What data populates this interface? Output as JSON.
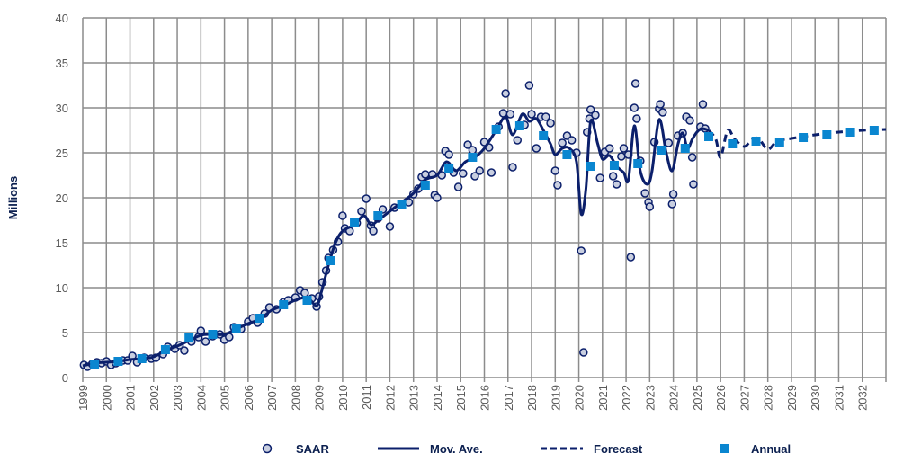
{
  "chart_data": {
    "type": "line",
    "title": "",
    "xlabel": "",
    "ylabel": "Millions",
    "xlim": [
      1999,
      2033
    ],
    "ylim": [
      0,
      40
    ],
    "yticks": [
      "0",
      "5",
      "10",
      "15",
      "20",
      "25",
      "30",
      "35",
      "40"
    ],
    "xticks": [
      "1999",
      "2000",
      "2001",
      "2002",
      "2003",
      "2004",
      "2005",
      "2006",
      "2007",
      "2008",
      "2009",
      "2010",
      "2011",
      "2012",
      "2013",
      "2014",
      "2015",
      "2016",
      "2017",
      "2018",
      "2019",
      "2020",
      "2021",
      "2022",
      "2023",
      "2024",
      "2025",
      "2026",
      "2027",
      "2028",
      "2029",
      "2030",
      "2031",
      "2032"
    ],
    "grid": true,
    "legend_position": "bottom",
    "colors": {
      "navy": "#0b1f6b",
      "annual": "#0a86d0",
      "saar_fill": "#c9cfe0",
      "grid": "#8c8c8c"
    },
    "series": [
      {
        "name": "SAAR",
        "kind": "scatter",
        "points": [
          [
            1999.05,
            1.4
          ],
          [
            1999.2,
            1.2
          ],
          [
            1999.4,
            1.5
          ],
          [
            1999.6,
            1.7
          ],
          [
            1999.8,
            1.6
          ],
          [
            2000.0,
            1.8
          ],
          [
            2000.2,
            1.4
          ],
          [
            2000.4,
            1.6
          ],
          [
            2000.7,
            1.9
          ],
          [
            2000.9,
            1.9
          ],
          [
            2001.1,
            2.4
          ],
          [
            2001.3,
            1.7
          ],
          [
            2001.6,
            2.2
          ],
          [
            2001.9,
            2.1
          ],
          [
            2002.1,
            2.2
          ],
          [
            2002.4,
            2.6
          ],
          [
            2002.6,
            3.4
          ],
          [
            2002.9,
            3.2
          ],
          [
            2003.1,
            3.6
          ],
          [
            2003.3,
            3.0
          ],
          [
            2003.6,
            4.0
          ],
          [
            2003.9,
            4.5
          ],
          [
            2004.0,
            5.2
          ],
          [
            2004.2,
            4.0
          ],
          [
            2004.5,
            4.6
          ],
          [
            2004.8,
            4.8
          ],
          [
            2005.0,
            4.2
          ],
          [
            2005.2,
            4.5
          ],
          [
            2005.4,
            5.6
          ],
          [
            2005.7,
            5.4
          ],
          [
            2006.0,
            6.2
          ],
          [
            2006.2,
            6.6
          ],
          [
            2006.4,
            6.1
          ],
          [
            2006.7,
            7.1
          ],
          [
            2006.9,
            7.8
          ],
          [
            2007.2,
            7.6
          ],
          [
            2007.5,
            8.4
          ],
          [
            2007.7,
            8.6
          ],
          [
            2008.0,
            8.9
          ],
          [
            2008.2,
            9.7
          ],
          [
            2008.4,
            9.4
          ],
          [
            2008.7,
            8.8
          ],
          [
            2008.9,
            7.9
          ],
          [
            2009.0,
            9.0
          ],
          [
            2009.15,
            10.6
          ],
          [
            2009.3,
            11.9
          ],
          [
            2009.4,
            13.3
          ],
          [
            2009.6,
            14.2
          ],
          [
            2009.8,
            15.1
          ],
          [
            2010.0,
            18.0
          ],
          [
            2010.1,
            16.6
          ],
          [
            2010.3,
            16.3
          ],
          [
            2010.6,
            17.2
          ],
          [
            2010.8,
            18.5
          ],
          [
            2011.0,
            19.9
          ],
          [
            2011.2,
            16.9
          ],
          [
            2011.3,
            16.3
          ],
          [
            2011.5,
            17.7
          ],
          [
            2011.7,
            18.7
          ],
          [
            2012.0,
            16.8
          ],
          [
            2012.2,
            18.9
          ],
          [
            2012.5,
            19.2
          ],
          [
            2012.8,
            19.5
          ],
          [
            2013.0,
            20.4
          ],
          [
            2013.2,
            21.0
          ],
          [
            2013.35,
            22.3
          ],
          [
            2013.5,
            22.6
          ],
          [
            2013.8,
            22.6
          ],
          [
            2013.9,
            20.3
          ],
          [
            2014.0,
            20.0
          ],
          [
            2014.2,
            22.5
          ],
          [
            2014.35,
            25.2
          ],
          [
            2014.5,
            24.8
          ],
          [
            2014.7,
            22.8
          ],
          [
            2014.9,
            21.2
          ],
          [
            2015.1,
            22.7
          ],
          [
            2015.3,
            25.9
          ],
          [
            2015.5,
            25.3
          ],
          [
            2015.6,
            22.4
          ],
          [
            2015.8,
            23.0
          ],
          [
            2016.0,
            26.2
          ],
          [
            2016.2,
            25.6
          ],
          [
            2016.3,
            22.8
          ],
          [
            2016.6,
            27.9
          ],
          [
            2016.8,
            29.4
          ],
          [
            2016.9,
            31.6
          ],
          [
            2017.1,
            29.3
          ],
          [
            2017.2,
            23.4
          ],
          [
            2017.4,
            26.4
          ],
          [
            2017.7,
            28.1
          ],
          [
            2017.9,
            32.5
          ],
          [
            2018.0,
            29.3
          ],
          [
            2018.2,
            25.5
          ],
          [
            2018.4,
            29.0
          ],
          [
            2018.6,
            29.0
          ],
          [
            2018.8,
            28.3
          ],
          [
            2019.0,
            23.0
          ],
          [
            2019.1,
            21.4
          ],
          [
            2019.3,
            26.1
          ],
          [
            2019.5,
            26.9
          ],
          [
            2019.7,
            26.4
          ],
          [
            2019.9,
            25.0
          ],
          [
            2020.1,
            14.1
          ],
          [
            2020.2,
            2.8
          ],
          [
            2020.35,
            27.3
          ],
          [
            2020.45,
            28.8
          ],
          [
            2020.5,
            29.8
          ],
          [
            2020.7,
            29.2
          ],
          [
            2020.9,
            22.2
          ],
          [
            2021.1,
            25.1
          ],
          [
            2021.3,
            25.5
          ],
          [
            2021.45,
            22.4
          ],
          [
            2021.6,
            21.5
          ],
          [
            2021.8,
            24.6
          ],
          [
            2021.9,
            25.5
          ],
          [
            2022.1,
            24.8
          ],
          [
            2022.2,
            13.4
          ],
          [
            2022.35,
            30.0
          ],
          [
            2022.4,
            32.7
          ],
          [
            2022.45,
            28.8
          ],
          [
            2022.6,
            24.1
          ],
          [
            2022.8,
            20.5
          ],
          [
            2022.95,
            19.5
          ],
          [
            2023.0,
            19.0
          ],
          [
            2023.2,
            26.2
          ],
          [
            2023.4,
            29.9
          ],
          [
            2023.45,
            30.4
          ],
          [
            2023.55,
            29.5
          ],
          [
            2023.8,
            26.1
          ],
          [
            2023.95,
            19.3
          ],
          [
            2024.0,
            20.4
          ],
          [
            2024.2,
            26.9
          ],
          [
            2024.4,
            27.2
          ],
          [
            2024.55,
            29.0
          ],
          [
            2024.7,
            28.6
          ],
          [
            2024.8,
            24.5
          ],
          [
            2024.85,
            21.5
          ],
          [
            2025.15,
            27.9
          ],
          [
            2025.25,
            30.4
          ],
          [
            2025.35,
            27.7
          ]
        ]
      },
      {
        "name": "Mov. Ave.",
        "kind": "line",
        "points": [
          [
            1999.0,
            1.3
          ],
          [
            1999.5,
            1.6
          ],
          [
            2000.0,
            1.7
          ],
          [
            2000.5,
            1.8
          ],
          [
            2001.0,
            2.0
          ],
          [
            2001.5,
            2.1
          ],
          [
            2002.0,
            2.3
          ],
          [
            2002.5,
            3.0
          ],
          [
            2003.0,
            3.5
          ],
          [
            2003.5,
            4.1
          ],
          [
            2004.0,
            4.7
          ],
          [
            2004.5,
            4.8
          ],
          [
            2005.0,
            4.8
          ],
          [
            2005.5,
            5.4
          ],
          [
            2006.0,
            6.0
          ],
          [
            2006.5,
            6.5
          ],
          [
            2007.0,
            7.5
          ],
          [
            2007.5,
            8.0
          ],
          [
            2008.0,
            8.6
          ],
          [
            2008.5,
            8.9
          ],
          [
            2008.9,
            8.0
          ],
          [
            2009.1,
            9.5
          ],
          [
            2009.4,
            12.5
          ],
          [
            2009.7,
            15.0
          ],
          [
            2010.0,
            16.3
          ],
          [
            2010.5,
            17.0
          ],
          [
            2010.9,
            18.0
          ],
          [
            2011.2,
            17.0
          ],
          [
            2011.5,
            17.5
          ],
          [
            2012.0,
            18.5
          ],
          [
            2012.5,
            19.5
          ],
          [
            2013.0,
            20.5
          ],
          [
            2013.5,
            22.0
          ],
          [
            2014.0,
            22.5
          ],
          [
            2014.4,
            24.0
          ],
          [
            2014.8,
            23.0
          ],
          [
            2015.2,
            24.0
          ],
          [
            2015.6,
            24.5
          ],
          [
            2016.0,
            25.5
          ],
          [
            2016.5,
            27.5
          ],
          [
            2016.9,
            29.0
          ],
          [
            2017.2,
            27.0
          ],
          [
            2017.6,
            29.3
          ],
          [
            2017.9,
            28.5
          ],
          [
            2018.2,
            28.8
          ],
          [
            2018.5,
            27.5
          ],
          [
            2018.8,
            26.0
          ],
          [
            2019.0,
            24.8
          ],
          [
            2019.3,
            25.5
          ],
          [
            2019.6,
            25.5
          ],
          [
            2019.9,
            24.0
          ],
          [
            2020.1,
            18.2
          ],
          [
            2020.3,
            21.0
          ],
          [
            2020.5,
            28.5
          ],
          [
            2020.8,
            26.0
          ],
          [
            2021.0,
            24.3
          ],
          [
            2021.3,
            24.7
          ],
          [
            2021.6,
            23.5
          ],
          [
            2021.9,
            22.8
          ],
          [
            2022.1,
            22.0
          ],
          [
            2022.35,
            28.0
          ],
          [
            2022.6,
            23.0
          ],
          [
            2022.9,
            21.5
          ],
          [
            2023.1,
            23.0
          ],
          [
            2023.4,
            28.7
          ],
          [
            2023.7,
            25.0
          ],
          [
            2023.95,
            23.0
          ],
          [
            2024.2,
            26.0
          ],
          [
            2024.4,
            27.2
          ],
          [
            2024.6,
            25.5
          ],
          [
            2024.8,
            26.5
          ],
          [
            2025.0,
            27.3
          ],
          [
            2025.2,
            27.7
          ],
          [
            2025.5,
            27.5
          ]
        ]
      },
      {
        "name": "Forecast",
        "kind": "dashed-line",
        "points": [
          [
            2025.5,
            27.5
          ],
          [
            2025.8,
            26.5
          ],
          [
            2026.0,
            24.5
          ],
          [
            2026.3,
            27.5
          ],
          [
            2026.6,
            26.5
          ],
          [
            2027.0,
            25.7
          ],
          [
            2027.3,
            26.4
          ],
          [
            2027.6,
            26.6
          ],
          [
            2028.0,
            25.4
          ],
          [
            2028.4,
            26.3
          ],
          [
            2029.0,
            26.6
          ],
          [
            2030.0,
            27.0
          ],
          [
            2031.0,
            27.3
          ],
          [
            2032.0,
            27.5
          ],
          [
            2033.0,
            27.6
          ]
        ]
      },
      {
        "name": "Annual",
        "kind": "square-markers",
        "points": [
          [
            1999.5,
            1.5
          ],
          [
            2000.5,
            1.8
          ],
          [
            2001.5,
            2.1
          ],
          [
            2002.5,
            3.1
          ],
          [
            2003.5,
            4.4
          ],
          [
            2004.5,
            4.8
          ],
          [
            2005.5,
            5.4
          ],
          [
            2006.5,
            6.6
          ],
          [
            2007.5,
            8.1
          ],
          [
            2008.5,
            8.6
          ],
          [
            2009.5,
            13.0
          ],
          [
            2010.5,
            17.2
          ],
          [
            2011.5,
            18.0
          ],
          [
            2012.5,
            19.3
          ],
          [
            2013.5,
            21.4
          ],
          [
            2014.5,
            23.2
          ],
          [
            2015.5,
            24.5
          ],
          [
            2016.5,
            27.6
          ],
          [
            2017.5,
            28.0
          ],
          [
            2018.5,
            26.9
          ],
          [
            2019.5,
            24.8
          ],
          [
            2020.5,
            23.5
          ],
          [
            2021.5,
            23.6
          ],
          [
            2022.5,
            23.8
          ],
          [
            2023.5,
            25.3
          ],
          [
            2024.5,
            25.5
          ],
          [
            2025.5,
            26.8
          ],
          [
            2026.5,
            26.0
          ],
          [
            2027.5,
            26.3
          ],
          [
            2028.5,
            26.1
          ],
          [
            2029.5,
            26.7
          ],
          [
            2030.5,
            27.0
          ],
          [
            2031.5,
            27.3
          ],
          [
            2032.5,
            27.5
          ]
        ]
      }
    ]
  }
}
